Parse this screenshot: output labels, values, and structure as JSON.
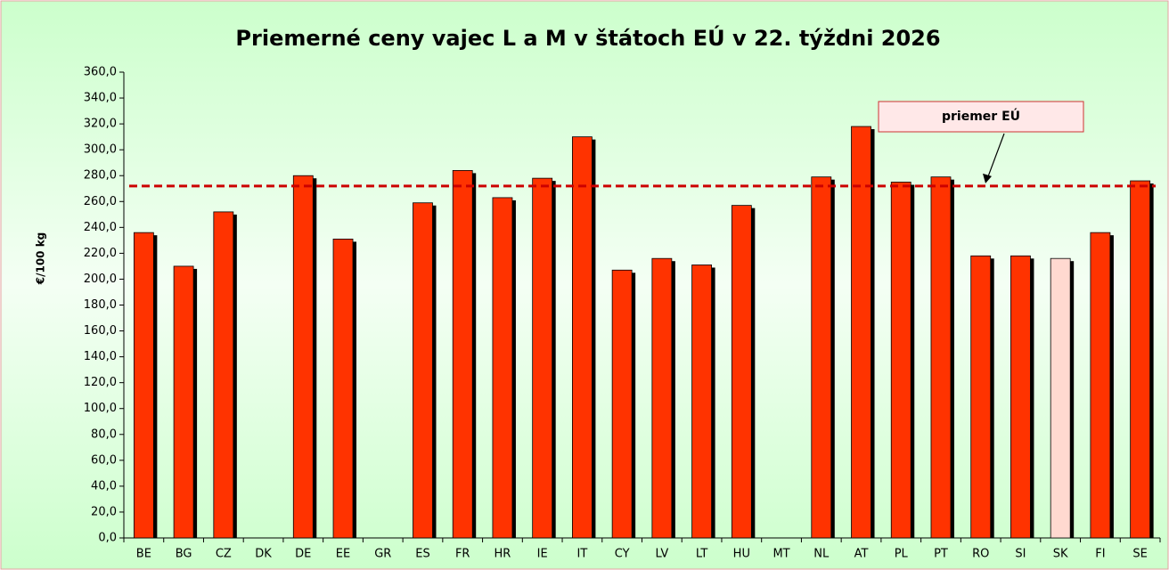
{
  "chart_data": {
    "type": "bar",
    "title": "Priemerné ceny vajec L a M v štátoch EÚ v 22. týždni 2026",
    "y_label": "€/100 kg",
    "categories": [
      "BE",
      "BG",
      "CZ",
      "DK",
      "DE",
      "EE",
      "GR",
      "ES",
      "FR",
      "HR",
      "IE",
      "IT",
      "CY",
      "LV",
      "LT",
      "HU",
      "MT",
      "NL",
      "AT",
      "PL",
      "PT",
      "RO",
      "SI",
      "SK",
      "FI",
      "SE"
    ],
    "values": [
      236,
      210,
      252,
      null,
      280,
      231,
      null,
      259,
      284,
      263,
      278,
      310,
      207,
      216,
      211,
      257,
      null,
      279,
      318,
      275,
      279,
      218,
      218,
      216,
      236,
      276
    ],
    "colors": [
      "#ff3300",
      "#ff3300",
      "#ff3300",
      "#ff3300",
      "#ff3300",
      "#ff3300",
      "#ff3300",
      "#ff3300",
      "#ff3300",
      "#ff3300",
      "#ff3300",
      "#ff3300",
      "#ff3300",
      "#ff3300",
      "#ff3300",
      "#ff3300",
      "#ff3300",
      "#ff3300",
      "#ff3300",
      "#ff3300",
      "#ff3300",
      "#ff3300",
      "#ff3300",
      "#ffd9d0",
      "#ff3300",
      "#ff3300"
    ],
    "reference_line": {
      "value": 272,
      "label": "priemer EÚ",
      "color": "#cc0000"
    },
    "ylim": [
      0,
      360
    ],
    "yticks": [
      {
        "value": 0,
        "label": "0,0"
      },
      {
        "value": 20,
        "label": "20,0"
      },
      {
        "value": 40,
        "label": "40,0"
      },
      {
        "value": 60,
        "label": "60,0"
      },
      {
        "value": 80,
        "label": "80,0"
      },
      {
        "value": 100,
        "label": "100,0"
      },
      {
        "value": 120,
        "label": "120,0"
      },
      {
        "value": 140,
        "label": "140,0"
      },
      {
        "value": 160,
        "label": "160,0"
      },
      {
        "value": 180,
        "label": "180,0"
      },
      {
        "value": 200,
        "label": "200,0"
      },
      {
        "value": 220,
        "label": "220,0"
      },
      {
        "value": 240,
        "label": "240,0"
      },
      {
        "value": 260,
        "label": "260,0"
      },
      {
        "value": 280,
        "label": "280,0"
      },
      {
        "value": 300,
        "label": "300,0"
      },
      {
        "value": 320,
        "label": "320,0"
      },
      {
        "value": 340,
        "label": "340,0"
      },
      {
        "value": 360,
        "label": "360,0"
      }
    ],
    "grid": false
  }
}
